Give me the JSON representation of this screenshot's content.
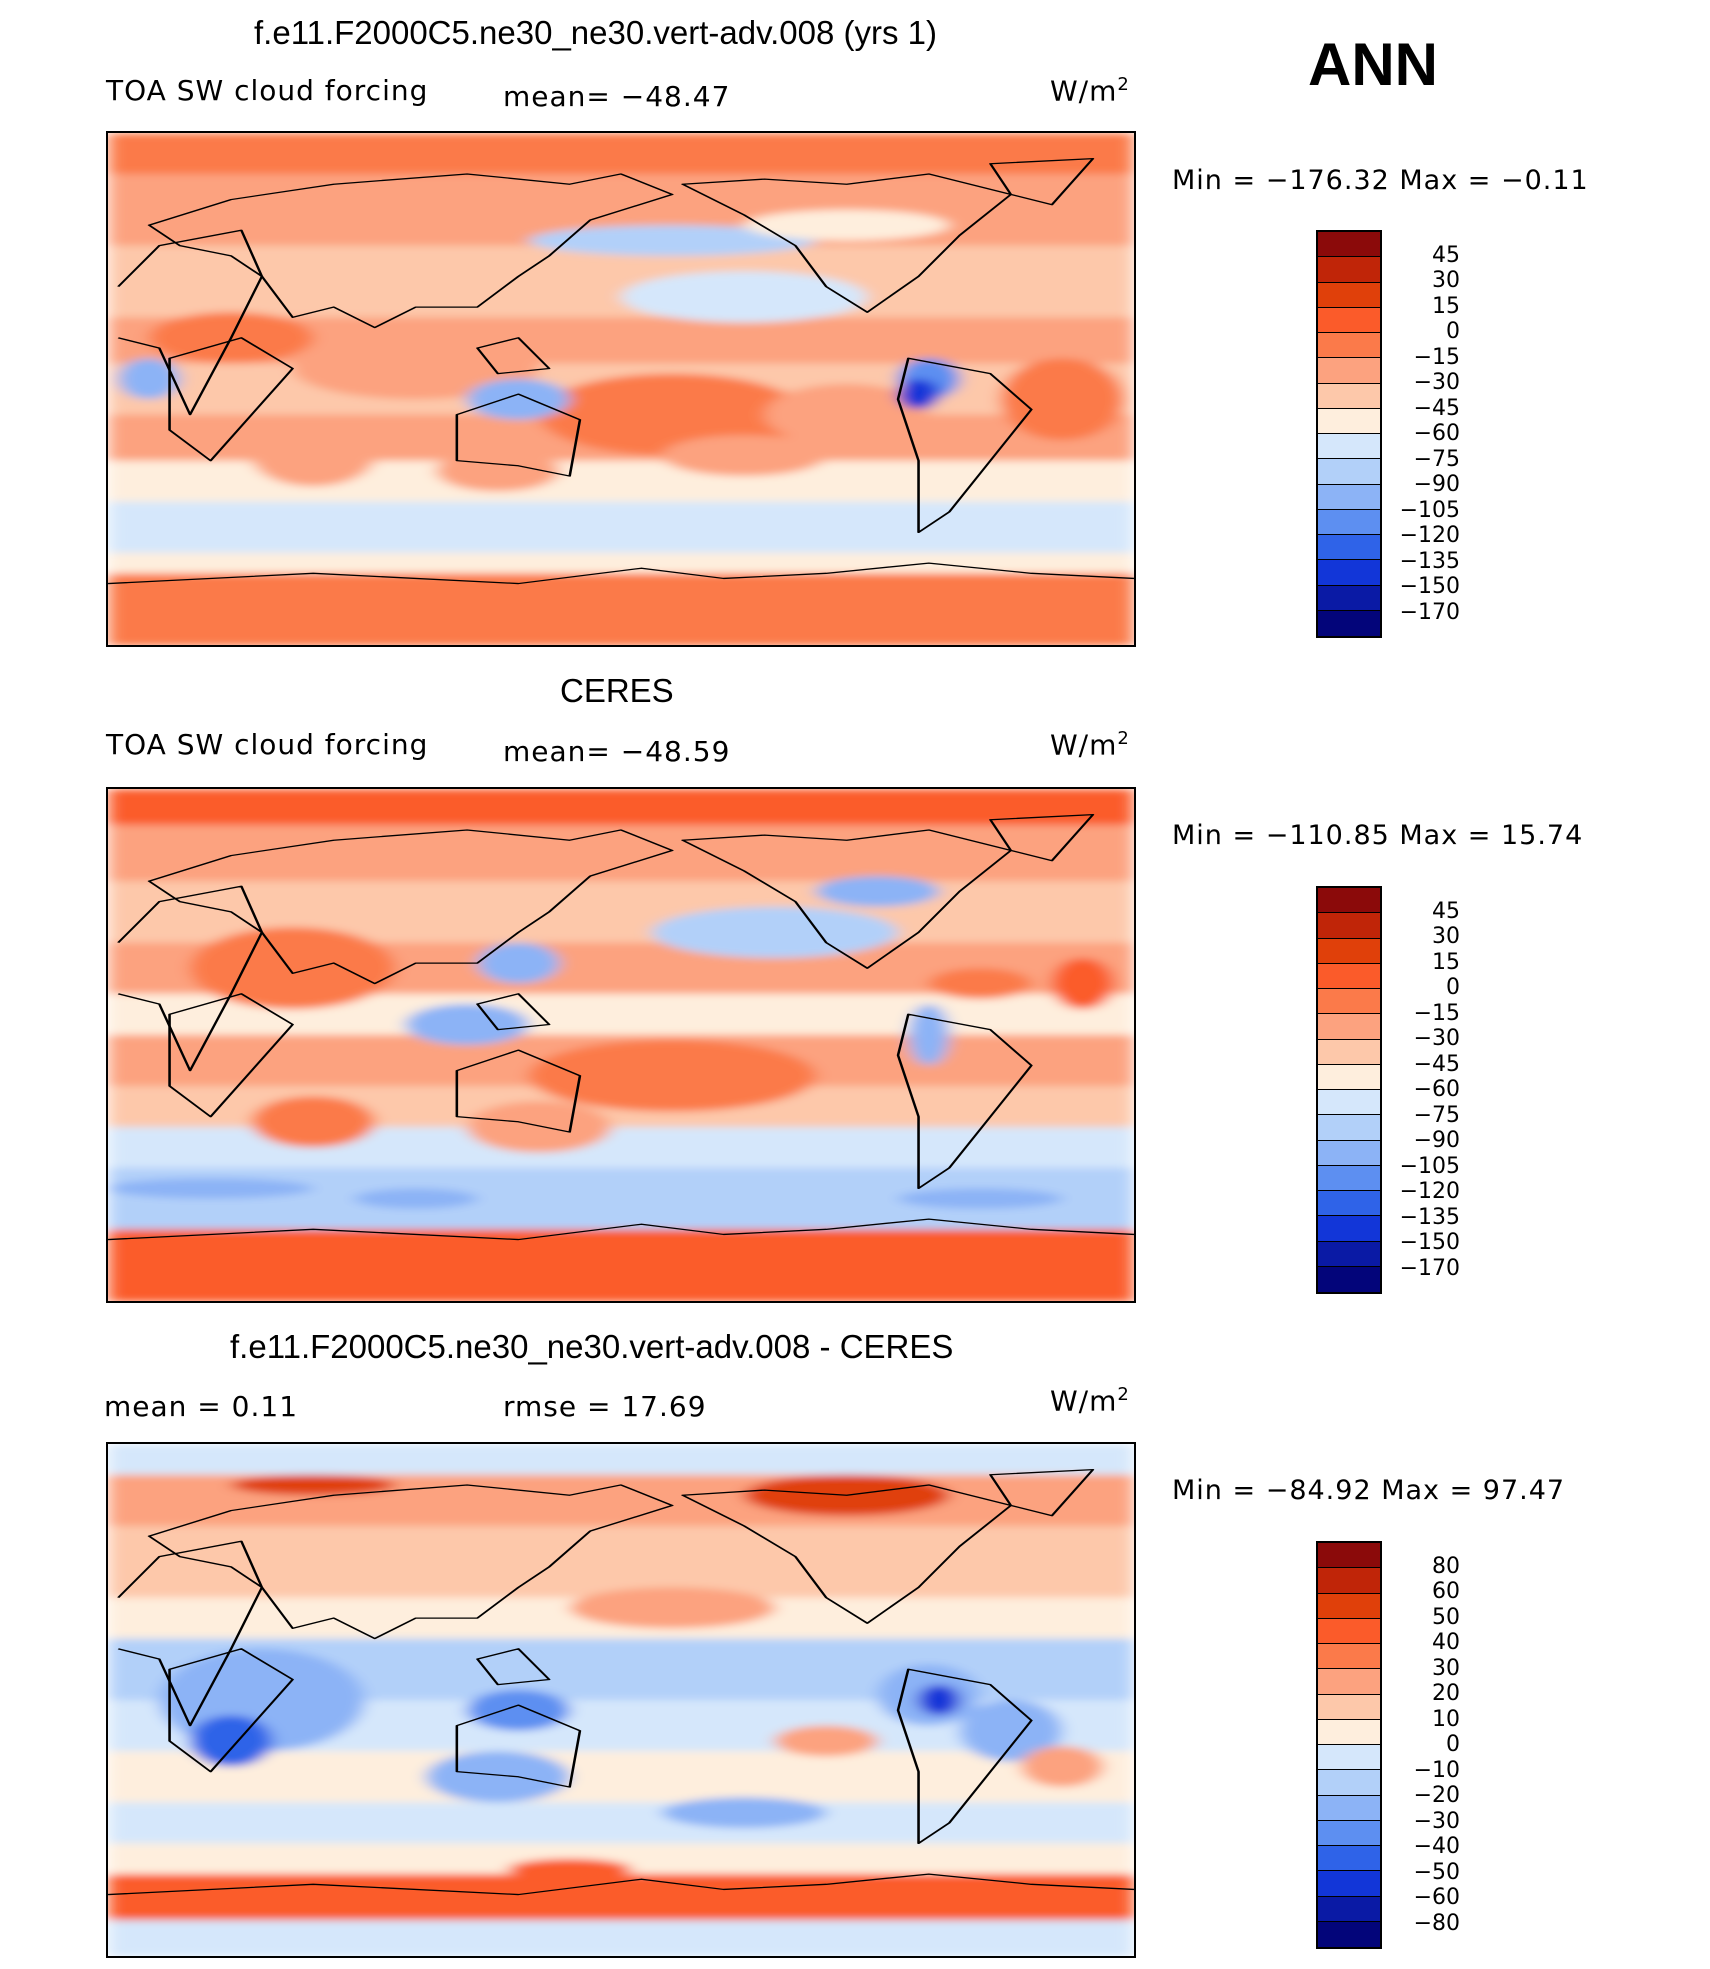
{
  "header": {
    "season": "ANN"
  },
  "chart_data": [
    {
      "type": "heatmap",
      "title": "f.e11.F2000C5.ne30_ne30.vert-adv.008 (yrs 1)",
      "variable": "TOA SW cloud forcing",
      "mean_text": "mean= −48.47",
      "units_text": "W/m",
      "units_exp": "2",
      "minmax_text": "Min = −176.32 Max =  −0.11",
      "levels": [
        "45",
        "30",
        "15",
        "0",
        "−15",
        "−30",
        "−45",
        "−60",
        "−75",
        "−90",
        "−105",
        "−120",
        "−135",
        "−150",
        "−170"
      ],
      "colors": [
        "#8b0a0a",
        "#c02508",
        "#e0400a",
        "#fb5b2a",
        "#fb7a4a",
        "#fca27f",
        "#fdc8aa",
        "#feeedd",
        "#d5e7fb",
        "#b2d0f9",
        "#8cb3f6",
        "#5d8ff1",
        "#2f63e8",
        "#1236d8",
        "#0a1aa5",
        "#03057a"
      ],
      "field_mean": -48.47,
      "field_min": -176.32,
      "field_max": -0.11
    },
    {
      "type": "heatmap",
      "title": "CERES",
      "variable": "TOA SW cloud forcing",
      "mean_text": "mean= −48.59",
      "units_text": "W/m",
      "units_exp": "2",
      "minmax_text": "Min = −110.85 Max =   15.74",
      "levels": [
        "45",
        "30",
        "15",
        "0",
        "−15",
        "−30",
        "−45",
        "−60",
        "−75",
        "−90",
        "−105",
        "−120",
        "−135",
        "−150",
        "−170"
      ],
      "colors": [
        "#8b0a0a",
        "#c02508",
        "#e0400a",
        "#fb5b2a",
        "#fb7a4a",
        "#fca27f",
        "#fdc8aa",
        "#feeedd",
        "#d5e7fb",
        "#b2d0f9",
        "#8cb3f6",
        "#5d8ff1",
        "#2f63e8",
        "#1236d8",
        "#0a1aa5",
        "#03057a"
      ],
      "field_mean": -48.59,
      "field_min": -110.85,
      "field_max": 15.74
    },
    {
      "type": "heatmap",
      "title": "f.e11.F2000C5.ne30_ne30.vert-adv.008 - CERES",
      "mean_text": "mean =    0.11",
      "rmse_text": "rmse =   17.69",
      "units_text": "W/m",
      "units_exp": "2",
      "minmax_text": "Min = −84.92 Max =   97.47",
      "levels": [
        "80",
        "60",
        "50",
        "40",
        "30",
        "20",
        "10",
        "0",
        "−10",
        "−20",
        "−30",
        "−40",
        "−50",
        "−60",
        "−80"
      ],
      "colors": [
        "#8b0a0a",
        "#c02508",
        "#e0400a",
        "#fb5b2a",
        "#fb7a4a",
        "#fca27f",
        "#fdc8aa",
        "#feeedd",
        "#d5e7fb",
        "#b2d0f9",
        "#8cb3f6",
        "#5d8ff1",
        "#2f63e8",
        "#1236d8",
        "#0a1aa5",
        "#03057a"
      ],
      "field_mean": 0.11,
      "field_rmse": 17.69,
      "field_min": -84.92,
      "field_max": 97.47
    }
  ]
}
